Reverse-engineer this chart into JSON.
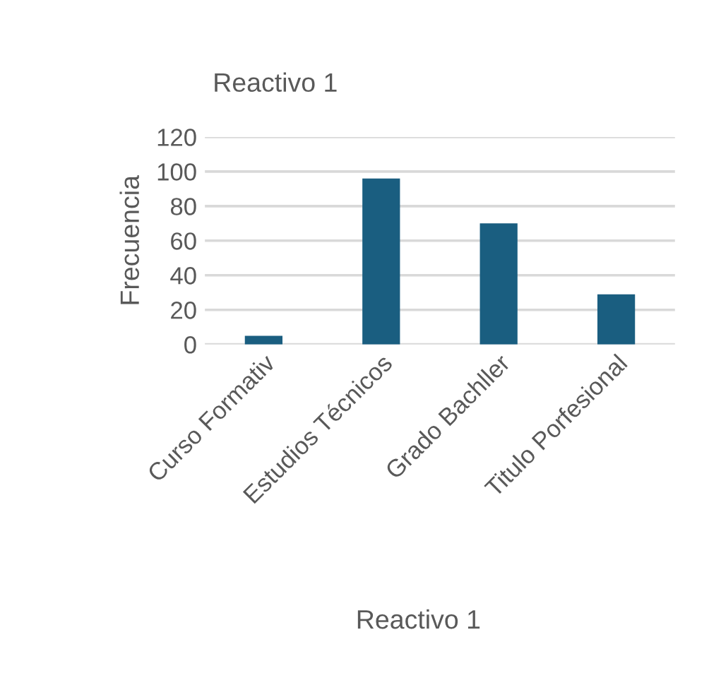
{
  "chart_data": {
    "type": "bar",
    "title": "Reactivo 1",
    "xlabel": "Reactivo 1",
    "ylabel": "Frecuencia",
    "categories": [
      "Curso Formativ",
      "Estudios Técnicos",
      "Grado Bachller",
      "Titulo Porfesional"
    ],
    "values": [
      5,
      96,
      70,
      29
    ],
    "color": "#1a5e80",
    "ylim": [
      0,
      120
    ],
    "yticks": [
      0,
      20,
      40,
      60,
      80,
      100,
      120
    ],
    "grid": "y",
    "legend": false
  }
}
